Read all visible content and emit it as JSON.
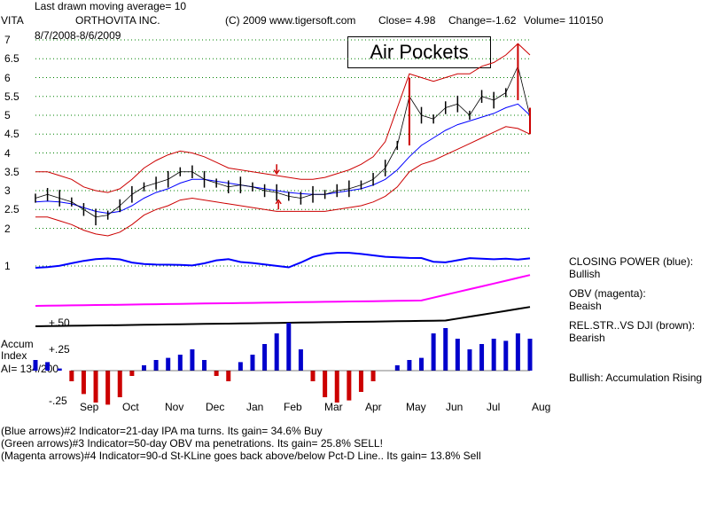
{
  "header": {
    "moving_average": "Last drawn moving average= 10",
    "ticker": "VITA",
    "company": "ORTHOVITA INC.",
    "copyright": "(C) 2009 www.tigersoft.com",
    "close": "Close=  4.98",
    "change": "Change=-1.62",
    "volume": "Volume= 110150",
    "date_range": "8/7/2008-8/6/2009"
  },
  "annotation": "Air Pockets",
  "accum": {
    "line1": "Accum",
    "line2": "Index",
    "line3": "AI= 134/200"
  },
  "right_panel": [
    {
      "label": "CLOSING POWER (blue):",
      "value": "Bullish"
    },
    {
      "label": "OBV (magenta):",
      "value": "Beaish"
    },
    {
      "label": "REL.STR..VS DJI (brown):",
      "value": "Bearish"
    },
    {
      "label": "Bullish: Accumulation Rising",
      "value": ""
    }
  ],
  "footer": [
    "(Blue arrows)#2 Indicator=21-day IPA ma turns. Its gain= 34.6% Buy",
    "(Green arrows)#3 Indicator=50-day OBV ma penetrations. Its gain= 25.8% SELL!",
    "(Magenta arrows)#4 Indicator=90-d St-KLine goes back above/below Pct-D Line.. Its gain= 13.8% Sell"
  ],
  "colors": {
    "price": "#000000",
    "upper_band": "#cc0000",
    "ma": "#0000ff",
    "closing_power": "#0000ff",
    "obv": "#ff00ff",
    "rel_str": "#000000",
    "accum_pos": "#0000cc",
    "accum_neg": "#cc0000",
    "grid": "#008000"
  },
  "chart_data": {
    "type": "line",
    "price_axis": {
      "ticks": [
        "7",
        "6.5",
        "6",
        "5.5",
        "5",
        "4.5",
        "4",
        "3.5",
        "3",
        "2.5",
        "2",
        "1"
      ],
      "ylim": [
        1,
        7
      ]
    },
    "accum_axis": {
      "ticks": [
        "+.50",
        "+.25",
        "-.25"
      ]
    },
    "months": [
      "Sep",
      "Oct",
      "Nov",
      "Dec",
      "Jan",
      "Feb",
      "Mar",
      "Apr",
      "May",
      "Jun",
      "Jul",
      "Aug"
    ],
    "price": {
      "x": [
        0,
        5,
        10,
        15,
        20,
        25,
        30,
        35,
        40,
        45,
        50,
        55,
        60,
        65,
        70,
        75,
        80,
        85,
        90,
        95,
        100,
        105,
        110,
        115,
        120,
        125,
        130,
        135,
        140,
        145,
        150,
        155,
        160,
        165,
        170,
        175,
        180,
        185,
        190,
        195,
        200,
        205,
        210,
        215,
        220,
        225,
        230,
        235,
        240,
        245,
        250
      ],
      "close": [
        2.8,
        2.9,
        2.8,
        2.7,
        2.5,
        2.3,
        2.35,
        2.6,
        2.9,
        3.1,
        3.2,
        3.3,
        3.5,
        3.5,
        3.3,
        3.2,
        3.1,
        3.15,
        3.1,
        3.0,
        2.95,
        2.85,
        2.8,
        2.9,
        2.9,
        3.0,
        3.05,
        3.15,
        3.3,
        3.6,
        4.2,
        5.5,
        5.0,
        4.9,
        5.2,
        5.3,
        5.0,
        5.5,
        5.4,
        5.6,
        6.3,
        4.98,
        4.98,
        4.98,
        4.98,
        4.98,
        4.98,
        4.98,
        4.98,
        4.98,
        4.98
      ]
    },
    "ma_line": [
      2.7,
      2.72,
      2.7,
      2.65,
      2.55,
      2.45,
      2.4,
      2.45,
      2.6,
      2.8,
      2.95,
      3.05,
      3.2,
      3.3,
      3.3,
      3.25,
      3.2,
      3.15,
      3.1,
      3.05,
      3.0,
      2.95,
      2.92,
      2.9,
      2.9,
      2.95,
      3.0,
      3.05,
      3.15,
      3.3,
      3.55,
      3.9,
      4.2,
      4.4,
      4.6,
      4.75,
      4.85,
      4.95,
      5.05,
      5.2,
      5.3,
      5.0
    ],
    "upper_band": [
      3.5,
      3.5,
      3.4,
      3.3,
      3.1,
      3.0,
      2.95,
      3.05,
      3.3,
      3.6,
      3.8,
      3.95,
      4.05,
      4.0,
      3.9,
      3.75,
      3.6,
      3.55,
      3.5,
      3.45,
      3.4,
      3.35,
      3.3,
      3.3,
      3.35,
      3.45,
      3.55,
      3.7,
      3.9,
      4.3,
      5.2,
      6.1,
      6.0,
      5.9,
      6.0,
      6.1,
      6.1,
      6.3,
      6.4,
      6.6,
      6.9,
      6.6
    ],
    "lower_band": [
      2.3,
      2.3,
      2.2,
      2.1,
      1.95,
      1.85,
      1.8,
      1.9,
      2.1,
      2.35,
      2.5,
      2.6,
      2.75,
      2.8,
      2.75,
      2.7,
      2.65,
      2.6,
      2.55,
      2.5,
      2.45,
      2.45,
      2.45,
      2.45,
      2.45,
      2.5,
      2.55,
      2.6,
      2.7,
      2.85,
      3.1,
      3.5,
      3.7,
      3.8,
      3.95,
      4.1,
      4.25,
      4.4,
      4.55,
      4.7,
      4.65,
      4.5
    ],
    "sub_indicators": [
      "CLOSING POWER",
      "OBV",
      "REL.STR..VS DJI",
      "Accum Index"
    ],
    "accum_index": [
      0.1,
      0.08,
      0.02,
      -0.1,
      -0.22,
      -0.3,
      -0.32,
      -0.25,
      -0.05,
      0.05,
      0.1,
      0.12,
      0.15,
      0.2,
      0.1,
      -0.05,
      -0.1,
      0.08,
      0.15,
      0.25,
      0.35,
      0.45,
      0.2,
      -0.1,
      -0.25,
      -0.3,
      -0.28,
      -0.2,
      -0.1,
      0.0,
      0.05,
      0.1,
      0.12,
      0.35,
      0.4,
      0.3,
      0.2,
      0.25,
      0.3,
      0.28,
      0.35,
      0.3
    ]
  }
}
